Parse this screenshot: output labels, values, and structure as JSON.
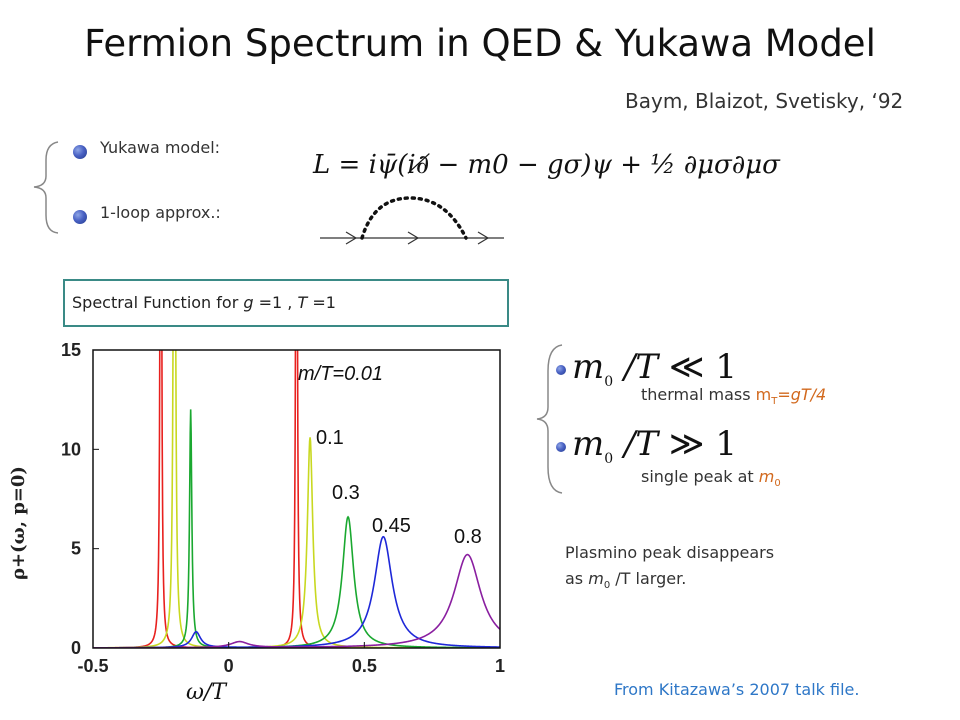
{
  "slide": {
    "title": "Fermion Spectrum in QED & Yukawa Model",
    "reference": "Baym, Blaizot, Svetisky, ‘92",
    "bullets": [
      {
        "label": "Yukawa model:"
      },
      {
        "label": "1-loop approx.:"
      }
    ],
    "lagrangian": "L = iψ̄(i∂̸ − m0 − gσ)ψ + ½ ∂μσ∂μσ",
    "spectral_box": {
      "prefix": "Spectral Function for ",
      "g": "g",
      "g_rest": " =1 , ",
      "T": "T",
      "T_rest": " =1"
    },
    "right_notes": {
      "item1_lhs": "m",
      "item1_sub": "0",
      "item1_mid": " /T ",
      "item1_rel": "≪",
      "item1_rhs": "1",
      "item1_text_a": "thermal mass ",
      "item1_text_m": "m",
      "item1_text_sub": "T",
      "item1_text_b": "=gT/4",
      "item2_lhs": "m",
      "item2_sub": "0",
      "item2_mid": " /T ",
      "item2_rel": "≫",
      "item2_rhs": "1",
      "item2_text_a": "single peak at ",
      "item2_text_m": "m",
      "item2_text_sub": "0"
    },
    "plasmino": {
      "line1": "Plasmino peak   disappears",
      "line2_a": "as ",
      "line2_m": "m",
      "line2_sub": "0",
      "line2_b": " /T larger."
    },
    "source": "From Kitazawa’s 2007 talk file."
  },
  "chart_data": {
    "type": "line",
    "title": "",
    "xlabel": "ω/T",
    "ylabel": "ρ+(ω, p=0)",
    "xlim": [
      -0.5,
      1
    ],
    "ylim": [
      0,
      15
    ],
    "xticks": [
      "-0.5",
      "0",
      "0.5",
      "1"
    ],
    "yticks": [
      "0",
      "5",
      "10",
      "15"
    ],
    "curve_labels": [
      "m/T=0.01",
      "0.1",
      "0.3",
      "0.45",
      "0.8"
    ],
    "series": [
      {
        "name": "m/T=0.01",
        "color": "#e8201e",
        "peaks": [
          {
            "x": -0.25,
            "h": 40.0,
            "w": 0.003
          },
          {
            "x": 0.25,
            "h": 40.0,
            "w": 0.003
          }
        ]
      },
      {
        "name": "0.1",
        "color": "#c8d820",
        "peaks": [
          {
            "x": -0.2,
            "h": 40.0,
            "w": 0.004
          },
          {
            "x": 0.3,
            "h": 10.6,
            "w": 0.012
          }
        ]
      },
      {
        "name": "0.3",
        "color": "#1aa830",
        "peaks": [
          {
            "x": -0.14,
            "h": 12.0,
            "w": 0.005
          },
          {
            "x": 0.44,
            "h": 6.6,
            "w": 0.025
          }
        ]
      },
      {
        "name": "0.45",
        "color": "#1e28d8",
        "peaks": [
          {
            "x": -0.12,
            "h": 0.8,
            "w": 0.02
          },
          {
            "x": 0.57,
            "h": 5.6,
            "w": 0.04
          }
        ]
      },
      {
        "name": "0.8",
        "color": "#8a1fa0",
        "peaks": [
          {
            "x": 0.04,
            "h": 0.3,
            "w": 0.04
          },
          {
            "x": 0.88,
            "h": 4.7,
            "w": 0.06
          }
        ]
      }
    ]
  }
}
